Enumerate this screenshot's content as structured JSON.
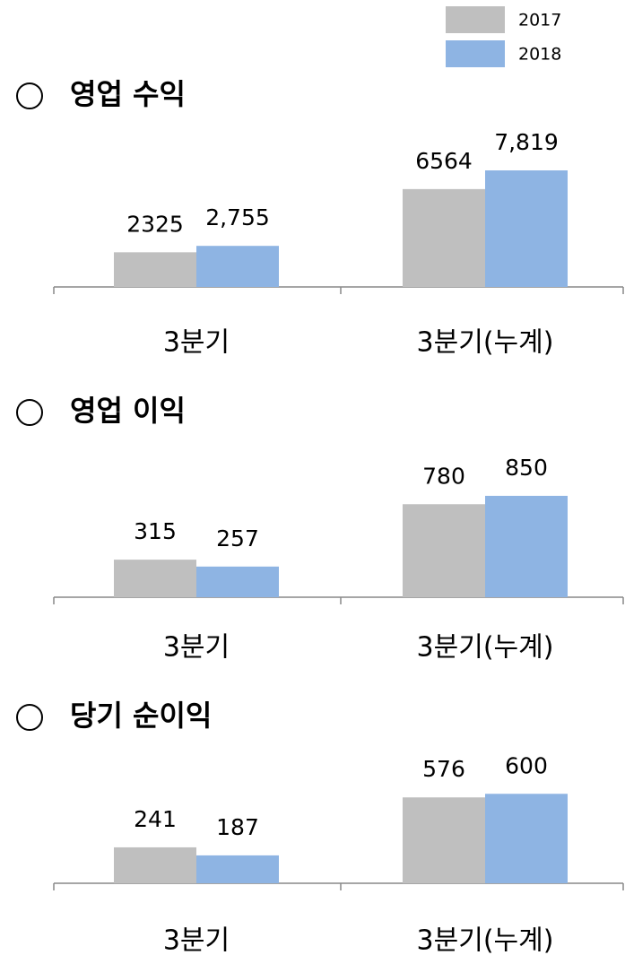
{
  "chart_data": [
    {
      "type": "bar",
      "title": "영업 수익",
      "categories": [
        "3분기",
        "3분기(누계)"
      ],
      "ylim": [
        0,
        8000
      ],
      "series": [
        {
          "name": "2017",
          "color": "#bfbfbf",
          "values": [
            2325,
            6564
          ]
        },
        {
          "name": "2018",
          "color": "#8eb4e3",
          "values": [
            2755,
            7819
          ],
          "value_labels": [
            "2,755",
            "7,819"
          ]
        }
      ]
    },
    {
      "type": "bar",
      "title": "영업 이익",
      "categories": [
        "3분기",
        "3분기(누계)"
      ],
      "ylim": [
        0,
        1000
      ],
      "series": [
        {
          "color": "#bfbfbf",
          "values": [
            315,
            780
          ]
        },
        {
          "color": "#8eb4e3",
          "values": [
            257,
            850
          ]
        }
      ]
    },
    {
      "type": "bar",
      "title": "당기 순이익",
      "categories": [
        "3분기",
        "3분기(누계)"
      ],
      "ylim": [
        0,
        800
      ],
      "series": [
        {
          "color": "#bfbfbf",
          "values": [
            241,
            576
          ]
        },
        {
          "color": "#8eb4e3",
          "values": [
            187,
            600
          ]
        }
      ]
    }
  ]
}
